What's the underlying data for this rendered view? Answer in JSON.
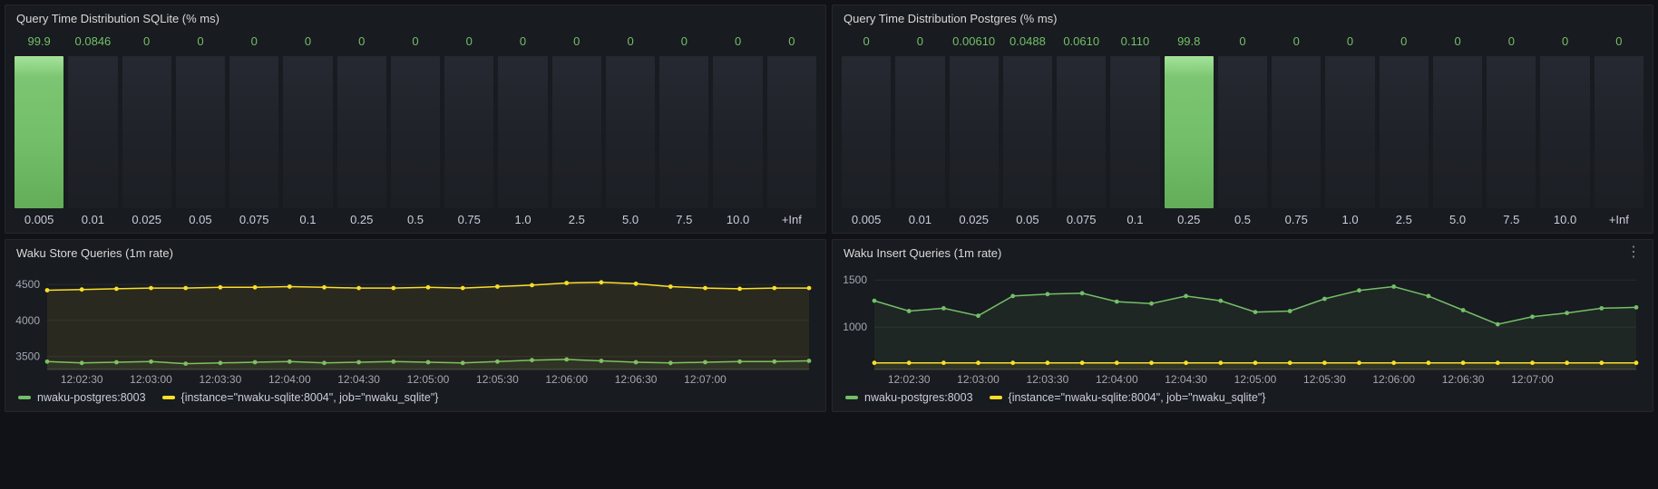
{
  "colors": {
    "green": "#73bf69",
    "yellow": "#fade2a",
    "value_text": "#73bf69"
  },
  "icons": {
    "kebab": "⋮"
  },
  "panels": {
    "sqlite_hist": {
      "title": "Query Time Distribution SQLite (% ms)"
    },
    "postgres_hist": {
      "title": "Query Time Distribution Postgres (% ms)"
    },
    "store": {
      "title": "Waku Store Queries (1m rate)"
    },
    "insert": {
      "title": "Waku Insert Queries (1m rate)"
    }
  },
  "legend_items": [
    {
      "label": "nwaku-postgres:8003",
      "color": "green"
    },
    {
      "label": "{instance=\"nwaku-sqlite:8004\", job=\"nwaku_sqlite\"}",
      "color": "yellow"
    }
  ],
  "chart_data": [
    {
      "id": "sqlite_hist",
      "type": "bar",
      "title": "Query Time Distribution SQLite (% ms)",
      "categories": [
        "0.005",
        "0.01",
        "0.025",
        "0.05",
        "0.075",
        "0.1",
        "0.25",
        "0.5",
        "0.75",
        "1.0",
        "2.5",
        "5.0",
        "7.5",
        "10.0",
        "+Inf"
      ],
      "values": [
        99.9,
        0.0846,
        0,
        0,
        0,
        0,
        0,
        0,
        0,
        0,
        0,
        0,
        0,
        0,
        0
      ],
      "value_labels": [
        "99.9",
        "0.0846",
        "0",
        "0",
        "0",
        "0",
        "0",
        "0",
        "0",
        "0",
        "0",
        "0",
        "0",
        "0",
        "0"
      ],
      "highlight_index": 0,
      "ylim": [
        0,
        100
      ]
    },
    {
      "id": "postgres_hist",
      "type": "bar",
      "title": "Query Time Distribution Postgres (% ms)",
      "categories": [
        "0.005",
        "0.01",
        "0.025",
        "0.05",
        "0.075",
        "0.1",
        "0.25",
        "0.5",
        "0.75",
        "1.0",
        "2.5",
        "5.0",
        "7.5",
        "10.0",
        "+Inf"
      ],
      "values": [
        0,
        0,
        0.0061,
        0.0488,
        0.061,
        0.11,
        99.8,
        0,
        0,
        0,
        0,
        0,
        0,
        0,
        0
      ],
      "value_labels": [
        "0",
        "0",
        "0.00610",
        "0.0488",
        "0.0610",
        "0.110",
        "99.8",
        "0",
        "0",
        "0",
        "0",
        "0",
        "0",
        "0",
        "0"
      ],
      "highlight_index": 6,
      "ylim": [
        0,
        100
      ]
    },
    {
      "id": "store",
      "type": "line",
      "title": "Waku Store Queries (1m rate)",
      "x_ticks": [
        "12:02:30",
        "12:03:00",
        "12:03:30",
        "12:04:00",
        "12:04:30",
        "12:05:00",
        "12:05:30",
        "12:06:00",
        "12:06:30",
        "12:07:00"
      ],
      "tick_indices": [
        1,
        3,
        5,
        7,
        9,
        11,
        13,
        15,
        17,
        19
      ],
      "points_count": 23,
      "y_ticks": [
        3500,
        4000,
        4500
      ],
      "ylim": [
        3320,
        4640
      ],
      "legend_position": "bottom",
      "grid": true,
      "series": [
        {
          "name": "nwaku-postgres:8003",
          "color": "green",
          "values": [
            3430,
            3410,
            3420,
            3430,
            3400,
            3410,
            3420,
            3430,
            3410,
            3420,
            3430,
            3420,
            3410,
            3430,
            3450,
            3460,
            3440,
            3420,
            3410,
            3420,
            3430,
            3430,
            3440
          ]
        },
        {
          "name": "{instance=\"nwaku-sqlite:8004\", job=\"nwaku_sqlite\"}",
          "color": "yellow",
          "values": [
            4420,
            4430,
            4440,
            4450,
            4450,
            4460,
            4460,
            4470,
            4460,
            4450,
            4450,
            4460,
            4450,
            4470,
            4490,
            4520,
            4530,
            4510,
            4470,
            4450,
            4440,
            4450,
            4450
          ]
        }
      ]
    },
    {
      "id": "insert",
      "type": "line",
      "title": "Waku Insert Queries (1m rate)",
      "x_ticks": [
        "12:02:30",
        "12:03:00",
        "12:03:30",
        "12:04:00",
        "12:04:30",
        "12:05:00",
        "12:05:30",
        "12:06:00",
        "12:06:30",
        "12:07:00"
      ],
      "tick_indices": [
        1,
        3,
        5,
        7,
        9,
        11,
        13,
        15,
        17,
        19
      ],
      "points_count": 23,
      "y_ticks": [
        1000,
        1500
      ],
      "ylim": [
        550,
        1560
      ],
      "legend_position": "bottom",
      "grid": true,
      "series": [
        {
          "name": "nwaku-postgres:8003",
          "color": "green",
          "values": [
            1280,
            1170,
            1200,
            1120,
            1330,
            1350,
            1360,
            1270,
            1250,
            1330,
            1280,
            1160,
            1170,
            1300,
            1390,
            1430,
            1330,
            1180,
            1030,
            1110,
            1150,
            1200,
            1210
          ]
        },
        {
          "name": "{instance=\"nwaku-sqlite:8004\", job=\"nwaku_sqlite\"}",
          "color": "yellow",
          "values": [
            620,
            620,
            620,
            620,
            620,
            620,
            620,
            620,
            620,
            620,
            620,
            620,
            620,
            620,
            620,
            620,
            620,
            620,
            620,
            620,
            620,
            620,
            620
          ]
        }
      ]
    }
  ]
}
